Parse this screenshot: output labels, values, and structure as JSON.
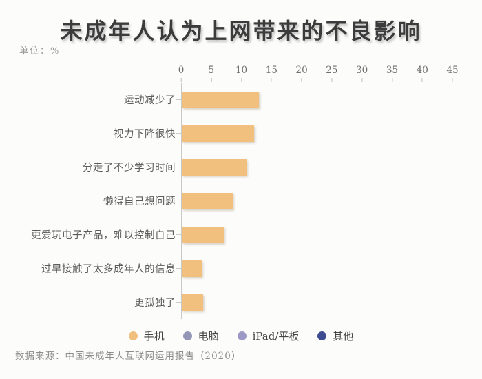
{
  "chart_data": {
    "type": "bar",
    "orientation": "horizontal",
    "title": "未成年人认为上网带来的不良影响",
    "unit_label": "单位：%",
    "categories": [
      "运动减少了",
      "视力下降很快",
      "分走了不少学习时间",
      "懒得自己想问题",
      "更爱玩电子产品，难以控制自己",
      "过早接触了太多成年人的信息",
      "更孤独了"
    ],
    "values": [
      12.8,
      12.0,
      10.7,
      8.4,
      7.0,
      3.3,
      3.5
    ],
    "visible_series": "手机",
    "xlim": [
      0,
      45
    ],
    "x_tick_step": 5,
    "x_ticks": [
      0,
      5,
      10,
      15,
      20,
      25,
      30,
      35,
      40,
      45
    ],
    "grid": false,
    "legend_position": "bottom",
    "legend": [
      {
        "label": "手机",
        "color": "#F1BF7E"
      },
      {
        "label": "电脑",
        "color": "#9496B6"
      },
      {
        "label": "iPad/平板",
        "color": "#9C9AC4"
      },
      {
        "label": "其他",
        "color": "#3D4B90"
      }
    ],
    "bar_color": "#F1BF7E",
    "axis_color": "#C9C9C9",
    "source": "数据来源：中国未成年人互联网运用报告（2020）"
  }
}
